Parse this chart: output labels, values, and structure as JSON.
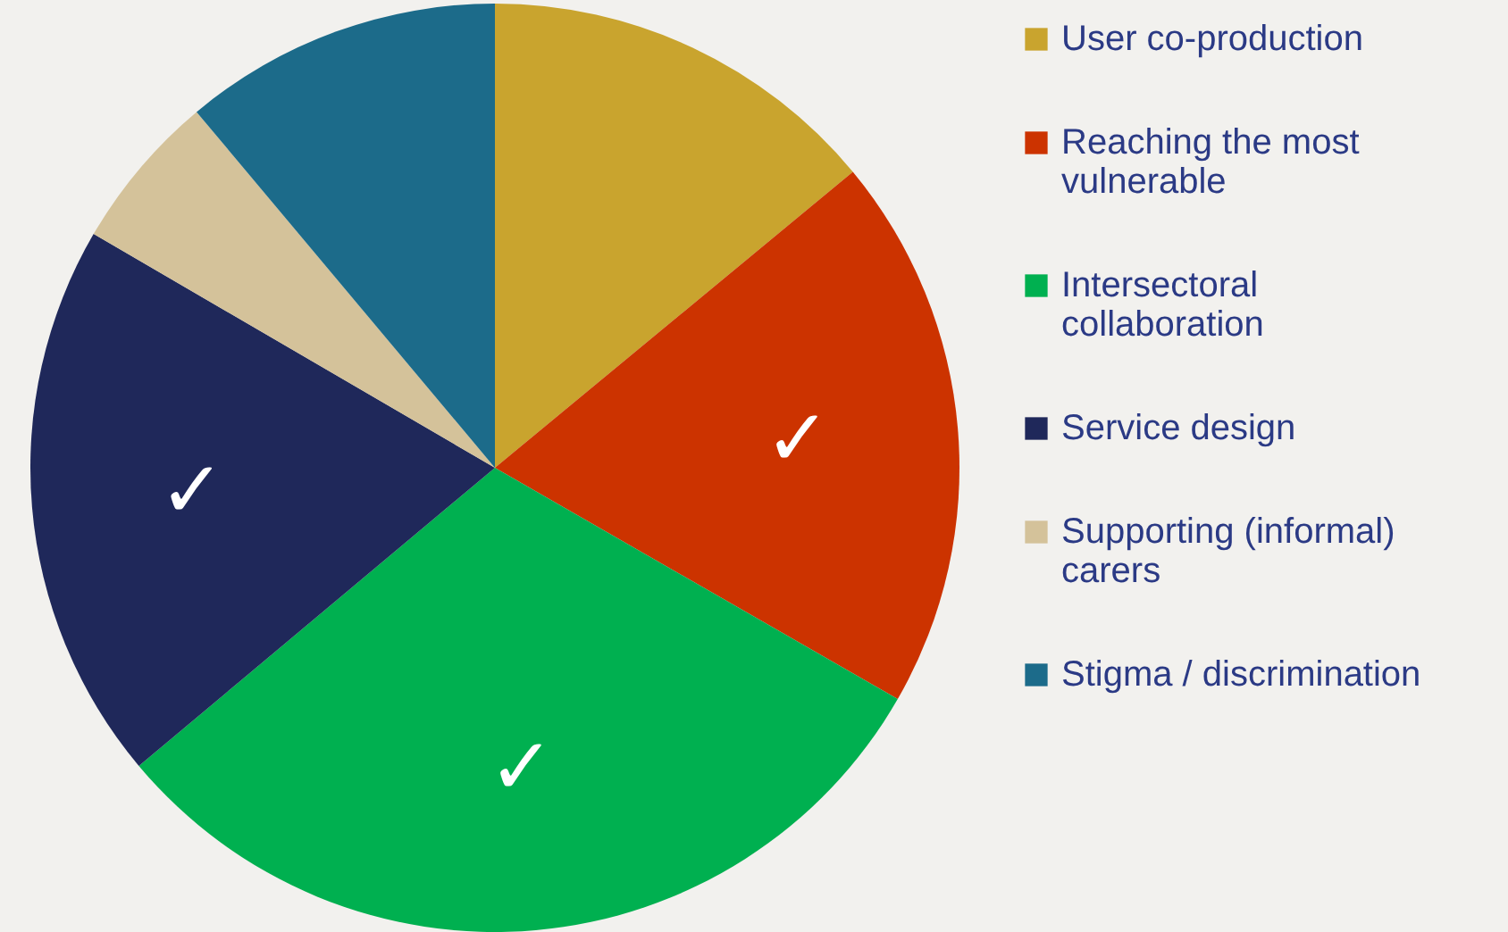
{
  "chart_data": {
    "type": "pie",
    "categories": [
      "User co-production",
      "Reaching the most vulnerable",
      "Intersectoral collaboration",
      "Service design",
      "Supporting (informal) carers",
      "Stigma / discrimination"
    ],
    "values": [
      14,
      19.3,
      30.6,
      19.5,
      5.5,
      11.1
    ],
    "colors": [
      "#c9a42e",
      "#cc3300",
      "#00b050",
      "#1f285a",
      "#d4c29a",
      "#1c6b8a"
    ],
    "legend": "right",
    "annotations": [
      {
        "text": "✓",
        "x": "Reaching the most vulnerable"
      },
      {
        "text": "✓",
        "x": "Intersectoral collaboration"
      },
      {
        "text": "✓",
        "x": "Service design"
      }
    ]
  }
}
